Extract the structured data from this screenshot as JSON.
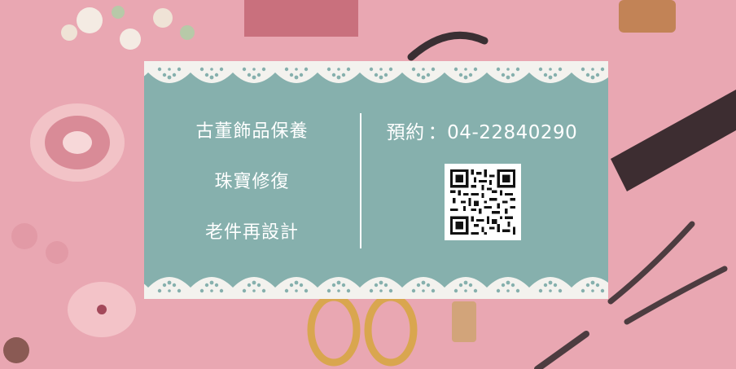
{
  "services": [
    "古董飾品保養",
    "珠寶修復",
    "老件再設計"
  ],
  "contact": {
    "label": "預約",
    "separator": "：",
    "phone": "04-22840290"
  },
  "qr_code": {
    "icon": "qr-code-icon"
  },
  "colors": {
    "background": "#e9a7b2",
    "card": "#86b0ad",
    "lace": "#f3f2ee",
    "lace_dots": "#86b0ad",
    "text": "#ffffff"
  }
}
